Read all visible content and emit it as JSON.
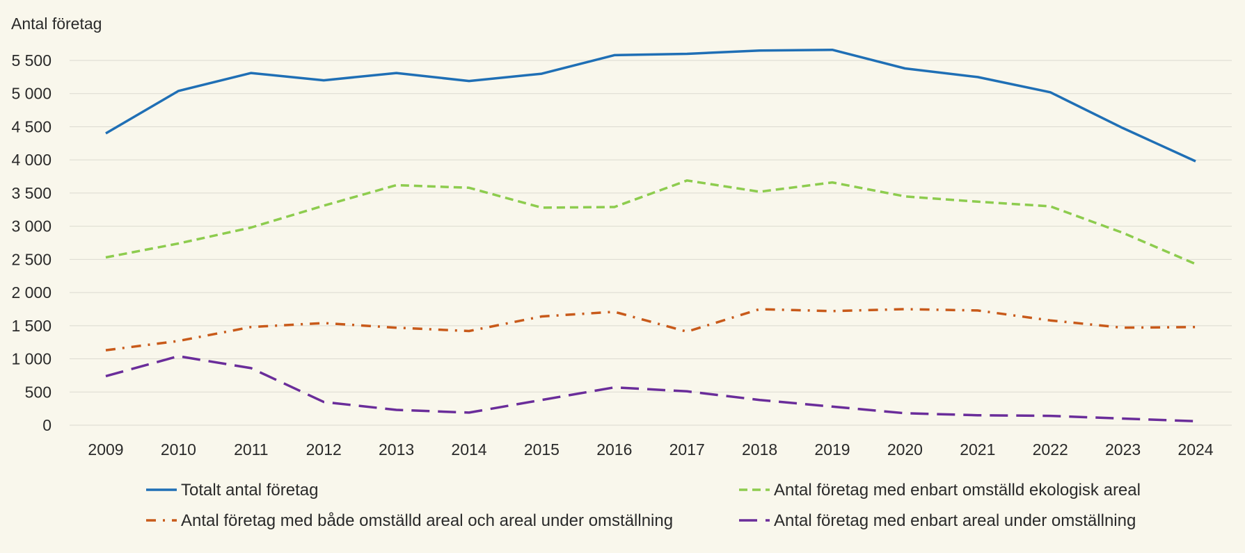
{
  "chart_data": {
    "type": "line",
    "title": "",
    "xlabel": "",
    "ylabel": "Antal företag",
    "ylim": [
      0,
      5500
    ],
    "y_ticks": [
      0,
      500,
      1000,
      1500,
      2000,
      2500,
      3000,
      3500,
      4000,
      4500,
      5000,
      5500
    ],
    "y_tick_labels": [
      "0",
      "500",
      "1 000",
      "1 500",
      "2 000",
      "2 500",
      "3 000",
      "3 500",
      "4 000",
      "4 500",
      "5 000",
      "5 500"
    ],
    "x": [
      "2009",
      "2010",
      "2011",
      "2012",
      "2013",
      "2014",
      "2015",
      "2016",
      "2017",
      "2018",
      "2019",
      "2020",
      "2021",
      "2022",
      "2023",
      "2024"
    ],
    "grid": true,
    "legend_position": "bottom",
    "series": [
      {
        "name": "Totalt antal företag",
        "color": "#1f6fb5",
        "style": "solid",
        "values": [
          4400,
          5040,
          5310,
          5200,
          5310,
          5190,
          5300,
          5580,
          5600,
          5650,
          5660,
          5380,
          5250,
          5020,
          4480,
          3980
        ]
      },
      {
        "name": "Antal företag med enbart omställd ekologisk areal",
        "color": "#8dcc4e",
        "style": "dashed",
        "values": [
          2530,
          2740,
          2980,
          3310,
          3620,
          3580,
          3280,
          3290,
          3690,
          3520,
          3660,
          3450,
          3370,
          3300,
          2900,
          2430
        ]
      },
      {
        "name": "Antal företag med både omställd areal och areal under omställning",
        "color": "#c85a1a",
        "style": "dashdot",
        "values": [
          1130,
          1270,
          1480,
          1540,
          1470,
          1420,
          1640,
          1710,
          1410,
          1750,
          1720,
          1750,
          1730,
          1580,
          1470,
          1480
        ]
      },
      {
        "name": "Antal företag med enbart areal under omställning",
        "color": "#6a2d9a",
        "style": "longdash",
        "values": [
          740,
          1040,
          860,
          350,
          230,
          190,
          380,
          570,
          510,
          380,
          280,
          180,
          150,
          140,
          100,
          60
        ]
      }
    ]
  }
}
